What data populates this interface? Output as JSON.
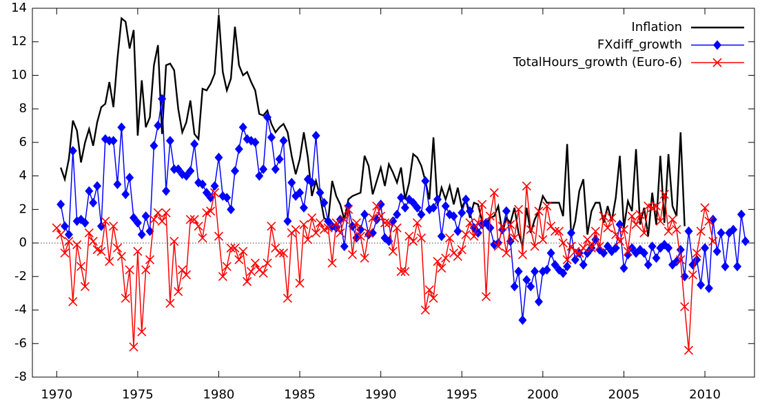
{
  "chart_data": {
    "type": "line",
    "x": [
      1970,
      1970.25,
      1970.5,
      1970.75,
      1971,
      1971.25,
      1971.5,
      1971.75,
      1972,
      1972.25,
      1972.5,
      1972.75,
      1973,
      1973.25,
      1973.5,
      1973.75,
      1974,
      1974.25,
      1974.5,
      1974.75,
      1975,
      1975.25,
      1975.5,
      1975.75,
      1976,
      1976.25,
      1976.5,
      1976.75,
      1977,
      1977.25,
      1977.5,
      1977.75,
      1978,
      1978.25,
      1978.5,
      1978.75,
      1979,
      1979.25,
      1979.5,
      1979.75,
      1980,
      1980.25,
      1980.5,
      1980.75,
      1981,
      1981.25,
      1981.5,
      1981.75,
      1982,
      1982.25,
      1982.5,
      1982.75,
      1983,
      1983.25,
      1983.5,
      1983.75,
      1984,
      1984.25,
      1984.5,
      1984.75,
      1985,
      1985.25,
      1985.5,
      1985.75,
      1986,
      1986.25,
      1986.5,
      1986.75,
      1987,
      1987.25,
      1987.5,
      1987.75,
      1988,
      1988.25,
      1988.5,
      1988.75,
      1989,
      1989.25,
      1989.5,
      1989.75,
      1990,
      1990.25,
      1990.5,
      1990.75,
      1991,
      1991.25,
      1991.5,
      1991.75,
      1992,
      1992.25,
      1992.5,
      1992.75,
      1993,
      1993.25,
      1993.5,
      1993.75,
      1994,
      1994.25,
      1994.5,
      1994.75,
      1995,
      1995.25,
      1995.5,
      1995.75,
      1996,
      1996.25,
      1996.5,
      1996.75,
      1997,
      1997.25,
      1997.5,
      1997.75,
      1998,
      1998.25,
      1998.5,
      1998.75,
      1999,
      1999.25,
      1999.5,
      1999.75,
      2000,
      2000.25,
      2000.5,
      2000.75,
      2001,
      2001.25,
      2001.5,
      2001.75,
      2002,
      2002.25,
      2002.5,
      2002.75,
      2003,
      2003.25,
      2003.5,
      2003.75,
      2004,
      2004.25,
      2004.5,
      2004.75,
      2005,
      2005.25,
      2005.5,
      2005.75,
      2006,
      2006.25,
      2006.5,
      2006.75,
      2007,
      2007.25,
      2007.5,
      2007.75,
      2008,
      2008.25,
      2008.5,
      2008.75,
      2009,
      2009.25,
      2009.5,
      2009.75,
      2010,
      2010.25,
      2010.5,
      2010.75,
      2011,
      2011.25,
      2011.5,
      2011.75,
      2012,
      2012.25,
      2012.5
    ],
    "series": [
      {
        "name": "Inflation",
        "color": "#000000",
        "marker": "none",
        "values": [
          null,
          4.5,
          3.8,
          5.0,
          7.3,
          6.7,
          4.8,
          6.0,
          6.8,
          5.8,
          7.2,
          8.1,
          8.3,
          9.6,
          8.1,
          11.0,
          13.4,
          13.2,
          11.6,
          12.7,
          6.4,
          9.7,
          6.9,
          7.5,
          10.6,
          11.8,
          6.5,
          10.6,
          10.7,
          10.3,
          8.0,
          6.6,
          7.2,
          8.5,
          6.5,
          6.2,
          9.2,
          9.1,
          9.5,
          10.1,
          13.6,
          10.2,
          9.1,
          9.8,
          12.9,
          10.6,
          10.0,
          10.2,
          9.6,
          9.1,
          7.7,
          7.6,
          7.9,
          7.1,
          6.6,
          6.9,
          7.1,
          6.6,
          5.2,
          4.1,
          5.0,
          6.6,
          5.1,
          2.8,
          3.7,
          2.8,
          1.5,
          1.3,
          3.7,
          2.8,
          2.3,
          1.4,
          2.6,
          2.8,
          2.9,
          3.0,
          5.2,
          4.6,
          2.9,
          3.7,
          4.5,
          3.4,
          4.7,
          4.2,
          3.6,
          4.5,
          2.6,
          3.6,
          5.3,
          5.1,
          4.6,
          3.7,
          2.6,
          6.3,
          2.2,
          3.3,
          2.6,
          3.4,
          2.3,
          3.3,
          2.1,
          2.6,
          1.5,
          2.4,
          2.3,
          1.3,
          1.1,
          1.5,
          1.6,
          2.2,
          0.6,
          1.5,
          1.2,
          2.1,
          0.6,
          -0.2,
          2.1,
          0.6,
          1.4,
          1.9,
          2.8,
          2.4,
          2.4,
          2.4,
          2.4,
          1.6,
          5.9,
          0.4,
          1.3,
          3.1,
          3.8,
          0.5,
          1.9,
          2.4,
          2.4,
          1.2,
          2.2,
          1.3,
          2.7,
          5.2,
          0.9,
          2.5,
          1.9,
          5.6,
          1.1,
          2.1,
          0.4,
          3.0,
          1.1,
          5.2,
          1.2,
          5.3,
          2.2,
          1.6,
          6.6,
          1.0,
          null,
          null,
          null,
          null,
          null,
          null,
          null,
          null,
          null,
          null,
          null,
          null,
          null,
          null,
          null
        ]
      },
      {
        "name": "FXdiff_growth",
        "color": "#0000ff",
        "marker": "diamond",
        "values": [
          null,
          2.3,
          1.0,
          0.5,
          5.5,
          1.3,
          1.4,
          1.2,
          3.1,
          2.4,
          3.4,
          1.0,
          6.2,
          6.1,
          6.1,
          3.5,
          6.9,
          2.9,
          3.9,
          1.5,
          1.2,
          0.5,
          1.6,
          0.7,
          5.8,
          7.0,
          8.6,
          3.1,
          6.1,
          4.4,
          4.4,
          4.1,
          4.0,
          4.3,
          5.9,
          3.6,
          3.5,
          3.0,
          2.7,
          3.4,
          5.1,
          2.8,
          2.7,
          2.0,
          4.3,
          5.6,
          6.9,
          6.2,
          6.1,
          6.0,
          4.0,
          4.4,
          7.5,
          6.3,
          4.4,
          5.0,
          6.1,
          1.3,
          3.6,
          2.8,
          3.0,
          2.1,
          3.8,
          3.6,
          6.4,
          3.0,
          2.4,
          1.3,
          1.0,
          0.9,
          1.4,
          -0.2,
          2.2,
          1.0,
          0.3,
          0.8,
          1.7,
          0.5,
          0.6,
          1.4,
          2.3,
          0.3,
          0.1,
          1.3,
          1.7,
          2.7,
          2.1,
          2.6,
          2.4,
          2.1,
          1.7,
          3.7,
          2.0,
          2.1,
          2.6,
          0.4,
          2.2,
          1.7,
          1.6,
          0.7,
          1.8,
          2.6,
          1.9,
          0.9,
          0.6,
          1.1,
          1.2,
          0.9,
          -0.1,
          0.0,
          0.8,
          1.9,
          0.1,
          -2.6,
          -1.7,
          -4.6,
          -2.2,
          -2.6,
          -1.7,
          -3.5,
          -1.7,
          -1.6,
          -0.6,
          -1.3,
          -1.6,
          -1.8,
          -1.4,
          0.6,
          -1.0,
          -0.6,
          -1.3,
          -0.6,
          -0.3,
          0.2,
          -0.4,
          -0.6,
          -0.2,
          -0.5,
          -0.3,
          1.1,
          -1.5,
          -0.7,
          -0.3,
          -0.6,
          -0.4,
          -0.6,
          -1.3,
          -0.2,
          -0.9,
          -0.3,
          -0.1,
          -0.3,
          -1.3,
          -1.1,
          -0.4,
          -2.0,
          0.7,
          -1.3,
          -1.0,
          -2.5,
          -0.3,
          -2.7,
          1.4,
          -0.5,
          0.6,
          -1.4,
          0.6,
          0.8,
          -1.4,
          1.7,
          0.1
        ]
      },
      {
        "name": "TotalHours_growth (Euro-6)",
        "color": "#ff0000",
        "marker": "cross",
        "values": [
          0.9,
          0.5,
          -0.6,
          0.1,
          -3.5,
          -0.1,
          -1.4,
          -2.6,
          0.6,
          0.1,
          -0.4,
          -0.5,
          1.3,
          -1.1,
          1.0,
          -0.3,
          -0.8,
          -3.3,
          -1.6,
          -6.2,
          -0.5,
          -5.3,
          -1.6,
          -1.0,
          1.4,
          1.8,
          1.3,
          1.8,
          -3.6,
          0.1,
          -2.9,
          -1.6,
          -1.9,
          1.4,
          1.4,
          1.0,
          0.3,
          1.8,
          1.9,
          3.0,
          0.4,
          -2.0,
          -1.4,
          -0.3,
          -0.3,
          -1.0,
          -0.5,
          -2.3,
          -1.7,
          -1.2,
          -1.6,
          -1.8,
          -1.2,
          1.0,
          -0.3,
          -0.6,
          -0.6,
          -3.3,
          0.6,
          0.8,
          -2.4,
          1.1,
          0.2,
          1.5,
          0.6,
          1.2,
          0.8,
          0.9,
          -1.2,
          1.2,
          0.6,
          1.4,
          2.0,
          -0.7,
          1.2,
          0.4,
          -0.9,
          0.6,
          1.5,
          2.2,
          1.6,
          1.2,
          1.2,
          -0.5,
          0.9,
          -1.7,
          -1.7,
          0.4,
          0.1,
          1.2,
          0.3,
          -4.0,
          -2.8,
          -3.3,
          -1.1,
          -1.5,
          -0.9,
          0.3,
          -0.6,
          -0.8,
          -0.4,
          0.5,
          1.2,
          0.4,
          1.2,
          2.3,
          -3.2,
          1.6,
          3.0,
          -0.2,
          1.0,
          -0.6,
          1.1,
          0.3,
          2.0,
          -0.7,
          3.4,
          0.8,
          -0.2,
          1.9,
          0.2,
          2.2,
          1.0,
          0.7,
          0.7,
          0.0,
          -1.0,
          -0.2,
          -0.5,
          -0.6,
          -0.3,
          0.2,
          -0.3,
          0.7,
          -0.2,
          1.6,
          0.9,
          1.5,
          0.5,
          0.1,
          0.8,
          -0.5,
          1.6,
          1.1,
          1.7,
          0.6,
          2.2,
          2.1,
          2.2,
          1.3,
          2.9,
          0.7,
          1.4,
          0.8,
          -1.0,
          -3.8,
          -6.4,
          -1.9,
          -0.6,
          0.7,
          2.1,
          1.3,
          0.1,
          null,
          null,
          null,
          null,
          null,
          null,
          null,
          null
        ]
      }
    ],
    "xlim": [
      1968.5,
      2013.06
    ],
    "ylim": [
      -8,
      14
    ],
    "xticks": [
      1970,
      1975,
      1980,
      1985,
      1990,
      1995,
      2000,
      2005,
      2010
    ],
    "yticks": [
      -8,
      -6,
      -4,
      -2,
      0,
      2,
      4,
      6,
      8,
      10,
      12,
      14
    ],
    "zero_line": true,
    "legend": "top-right"
  }
}
